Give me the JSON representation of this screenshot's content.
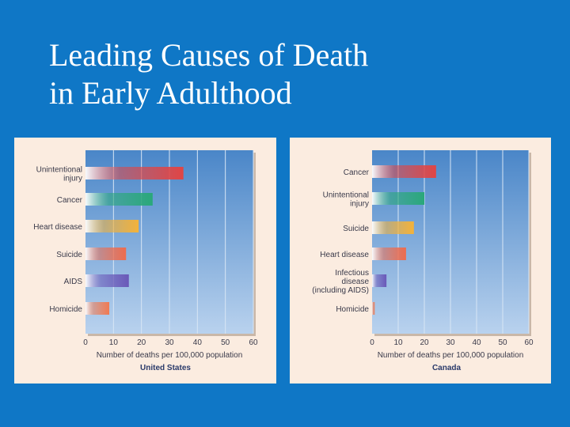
{
  "slide": {
    "title_line1": "Leading Causes of Death",
    "title_line2": "in Early Adulthood"
  },
  "colors": {
    "background": "#0f77c6",
    "panel": "#fbece0",
    "plot_top": "#4a86c8",
    "plot_bottom": "#b9d2ee",
    "text": "#3a3a4a",
    "subtitle": "#2a3a6a"
  },
  "chart_data": [
    {
      "type": "bar",
      "orientation": "horizontal",
      "title": "United States",
      "xlabel": "Number of deaths per 100,000 population",
      "xlim": [
        0,
        60
      ],
      "xticks": [
        "0",
        "10",
        "20",
        "30",
        "40",
        "50",
        "60"
      ],
      "categories": [
        {
          "lines": [
            "Unintentional",
            "injury"
          ],
          "value": 35,
          "color": "#e04545"
        },
        {
          "lines": [
            "Cancer"
          ],
          "value": 24,
          "color": "#2aa87a"
        },
        {
          "lines": [
            "Heart disease"
          ],
          "value": 19,
          "color": "#f3b23a"
        },
        {
          "lines": [
            "Suicide"
          ],
          "value": 14.5,
          "color": "#ee6c4e"
        },
        {
          "lines": [
            "AIDS"
          ],
          "value": 15.5,
          "color": "#6a58b8"
        },
        {
          "lines": [
            "Homicide"
          ],
          "value": 8.5,
          "color": "#f07a52"
        }
      ]
    },
    {
      "type": "bar",
      "orientation": "horizontal",
      "title": "Canada",
      "xlabel": "Number of deaths per 100,000 population",
      "xlim": [
        0,
        60
      ],
      "xticks": [
        "0",
        "10",
        "20",
        "30",
        "40",
        "50",
        "60"
      ],
      "categories": [
        {
          "lines": [
            "Cancer"
          ],
          "value": 24.5,
          "color": "#e04545"
        },
        {
          "lines": [
            "Unintentional",
            "injury"
          ],
          "value": 20,
          "color": "#2aa87a"
        },
        {
          "lines": [
            "Suicide"
          ],
          "value": 16,
          "color": "#f3b23a"
        },
        {
          "lines": [
            "Heart disease"
          ],
          "value": 13,
          "color": "#ee6c4e"
        },
        {
          "lines": [
            "Infectious",
            "disease",
            "(including AIDS)"
          ],
          "value": 5.5,
          "color": "#6a58b8"
        },
        {
          "lines": [
            "Homicide"
          ],
          "value": 1,
          "color": "#f07a52"
        }
      ]
    }
  ]
}
